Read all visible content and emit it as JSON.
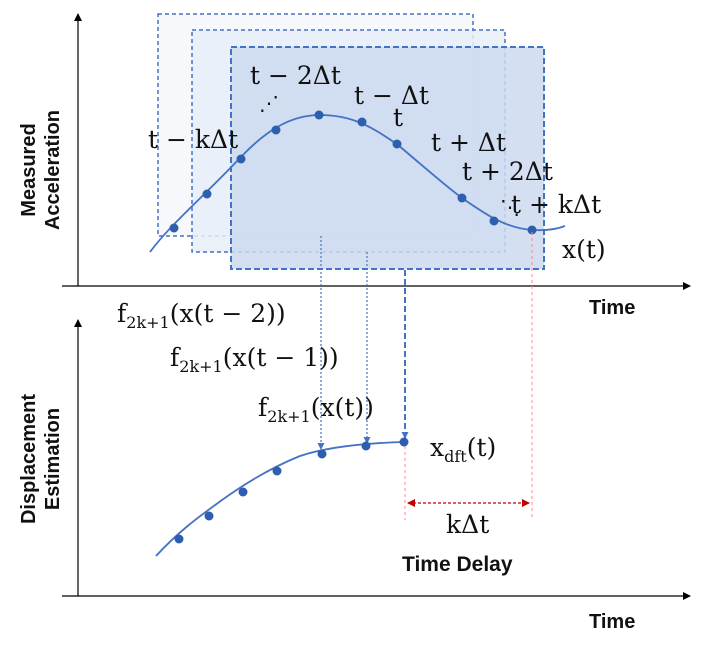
{
  "colors": {
    "curve": "#4472c4",
    "point": "#2e5fae",
    "window_border": "#4472c4",
    "window_fill_1": "#f6f8fc",
    "window_fill_2": "#e8eef8",
    "window_fill_3": "#ccd9ee",
    "delay_line": "#ff8a8a",
    "delay_arrow": "#c00000",
    "axis": "#000000"
  },
  "top_panel": {
    "ylabel_line1": "Measured",
    "ylabel_line2": "Acceleration",
    "xlabel": "Time",
    "curve_label": "x(t)",
    "point_labels": {
      "t_minus_kdt": "t − kΔt",
      "t_minus_2dt": "t − 2Δt",
      "dots_left": "⋰",
      "t_minus_dt": "t − Δt",
      "t": "t",
      "t_plus_dt": "t + Δt",
      "t_plus_2dt": "t + 2Δt",
      "dots_right": "⋱",
      "t_plus_kdt": "t + kΔt"
    }
  },
  "bottom_panel": {
    "ylabel_line1": "Displacement",
    "ylabel_line2": "Estimation",
    "xlabel": "Time",
    "curve_label": "x_dft(t)",
    "filters": {
      "f_base": "f",
      "f_sub": "2k+1",
      "f1_arg": "(x(t − 2))",
      "f2_arg": "(x(t − 1))",
      "f3_arg": "(x(t))"
    },
    "delay_label": "kΔt",
    "time_delay_label": "Time Delay"
  }
}
